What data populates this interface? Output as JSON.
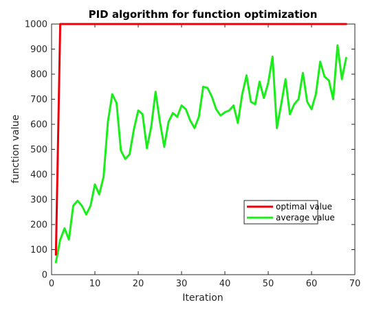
{
  "chart_data": {
    "type": "line",
    "title": "PID algorithm for function optimization",
    "xlabel": "Iteration",
    "ylabel": "function value",
    "xlim": [
      0,
      70
    ],
    "ylim": [
      0,
      1000
    ],
    "xticks": [
      "0",
      "10",
      "20",
      "30",
      "40",
      "50",
      "60",
      "70"
    ],
    "yticks": [
      "0",
      "100",
      "200",
      "300",
      "400",
      "500",
      "600",
      "700",
      "800",
      "900",
      "1000"
    ],
    "grid": false,
    "legend_position": "lower-right",
    "series": [
      {
        "name": "optimal value",
        "color": "#e8000b",
        "x": [
          1,
          2,
          3,
          68
        ],
        "y": [
          80,
          1000,
          1000,
          1000
        ]
      },
      {
        "name": "average value",
        "color": "#1aed1a",
        "x": [
          1,
          2,
          3,
          4,
          5,
          6,
          7,
          8,
          9,
          10,
          11,
          12,
          13,
          14,
          15,
          16,
          17,
          18,
          19,
          20,
          21,
          22,
          23,
          24,
          25,
          26,
          27,
          28,
          29,
          30,
          31,
          32,
          33,
          34,
          35,
          36,
          37,
          38,
          39,
          40,
          41,
          42,
          43,
          44,
          45,
          46,
          47,
          48,
          49,
          50,
          51,
          52,
          53,
          54,
          55,
          56,
          57,
          58,
          59,
          60,
          61,
          62,
          63,
          64,
          65,
          66,
          67,
          68
        ],
        "y": [
          50,
          140,
          185,
          140,
          275,
          295,
          275,
          240,
          275,
          360,
          320,
          390,
          610,
          720,
          685,
          495,
          462,
          480,
          580,
          655,
          640,
          505,
          590,
          730,
          610,
          510,
          610,
          645,
          630,
          675,
          660,
          615,
          585,
          630,
          750,
          745,
          710,
          660,
          635,
          648,
          655,
          675,
          605,
          720,
          795,
          690,
          680,
          770,
          705,
          765,
          870,
          585,
          680,
          780,
          640,
          680,
          700,
          805,
          690,
          660,
          720,
          850,
          790,
          775,
          700,
          915,
          780,
          865
        ]
      }
    ]
  }
}
